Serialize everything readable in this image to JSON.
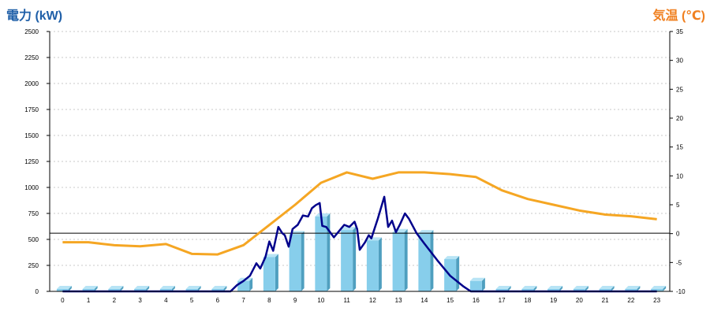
{
  "chart_data": {
    "type": "bar",
    "left_axis_title": "電力 (kW)",
    "right_axis_title": "気温 (℃)",
    "title": "",
    "xlabel": "",
    "categories": [
      "0",
      "1",
      "2",
      "3",
      "4",
      "5",
      "6",
      "7",
      "8",
      "9",
      "10",
      "11",
      "12",
      "13",
      "14",
      "15",
      "16",
      "17",
      "18",
      "19",
      "20",
      "21",
      "22",
      "23"
    ],
    "ylim": [
      0,
      2500
    ],
    "yticks": [
      0,
      250,
      500,
      750,
      1000,
      1250,
      1500,
      1750,
      2000,
      2250,
      2500
    ],
    "y2lim": [
      -10,
      35
    ],
    "y2ticks": [
      -10,
      -5,
      0,
      5,
      10,
      15,
      20,
      25,
      30,
      35
    ],
    "grid": true,
    "hourly_power_bars": {
      "values": [
        0,
        0,
        0,
        0,
        0,
        0,
        0,
        100,
        330,
        550,
        720,
        590,
        490,
        570,
        560,
        310,
        100,
        0,
        0,
        0,
        0,
        0,
        0,
        0
      ],
      "color": "#87ceeb"
    },
    "power_line": {
      "color": "#00008b",
      "points": [
        [
          0,
          0
        ],
        [
          1,
          0
        ],
        [
          2,
          0
        ],
        [
          3,
          0
        ],
        [
          4,
          0
        ],
        [
          5,
          0
        ],
        [
          6,
          0
        ],
        [
          6.5,
          0
        ],
        [
          6.75,
          60
        ],
        [
          7,
          100
        ],
        [
          7.25,
          150
        ],
        [
          7.5,
          270
        ],
        [
          7.65,
          220
        ],
        [
          7.85,
          330
        ],
        [
          8,
          480
        ],
        [
          8.15,
          390
        ],
        [
          8.35,
          620
        ],
        [
          8.5,
          560
        ],
        [
          8.6,
          540
        ],
        [
          8.75,
          430
        ],
        [
          8.9,
          600
        ],
        [
          9.1,
          640
        ],
        [
          9.3,
          730
        ],
        [
          9.5,
          720
        ],
        [
          9.65,
          800
        ],
        [
          9.8,
          830
        ],
        [
          9.95,
          850
        ],
        [
          10.05,
          630
        ],
        [
          10.2,
          620
        ],
        [
          10.5,
          520
        ],
        [
          10.7,
          580
        ],
        [
          10.9,
          640
        ],
        [
          11.1,
          620
        ],
        [
          11.3,
          670
        ],
        [
          11.4,
          600
        ],
        [
          11.5,
          400
        ],
        [
          11.7,
          470
        ],
        [
          11.85,
          540
        ],
        [
          11.95,
          510
        ],
        [
          12.2,
          700
        ],
        [
          12.45,
          910
        ],
        [
          12.6,
          620
        ],
        [
          12.75,
          680
        ],
        [
          12.9,
          570
        ],
        [
          13.05,
          640
        ],
        [
          13.25,
          750
        ],
        [
          13.4,
          700
        ],
        [
          13.55,
          630
        ],
        [
          13.7,
          560
        ],
        [
          14,
          460
        ],
        [
          14.5,
          300
        ],
        [
          15,
          150
        ],
        [
          15.5,
          50
        ],
        [
          15.8,
          0
        ],
        [
          16,
          0
        ],
        [
          17,
          0
        ],
        [
          18,
          0
        ],
        [
          19,
          0
        ],
        [
          20,
          0
        ],
        [
          21,
          0
        ],
        [
          22,
          0
        ],
        [
          23,
          0
        ]
      ]
    },
    "temperature_line": {
      "color": "#f5a623",
      "values": [
        -1.5,
        -1.5,
        -2,
        -2.2,
        -1.8,
        -3.5,
        -3.6,
        -2,
        1.5,
        5,
        8.8,
        10.6,
        9.5,
        10.6,
        10.6,
        10.3,
        9.8,
        7.5,
        6,
        5,
        4,
        3.3,
        3,
        2.5
      ]
    },
    "reference_level_kw": 560
  }
}
